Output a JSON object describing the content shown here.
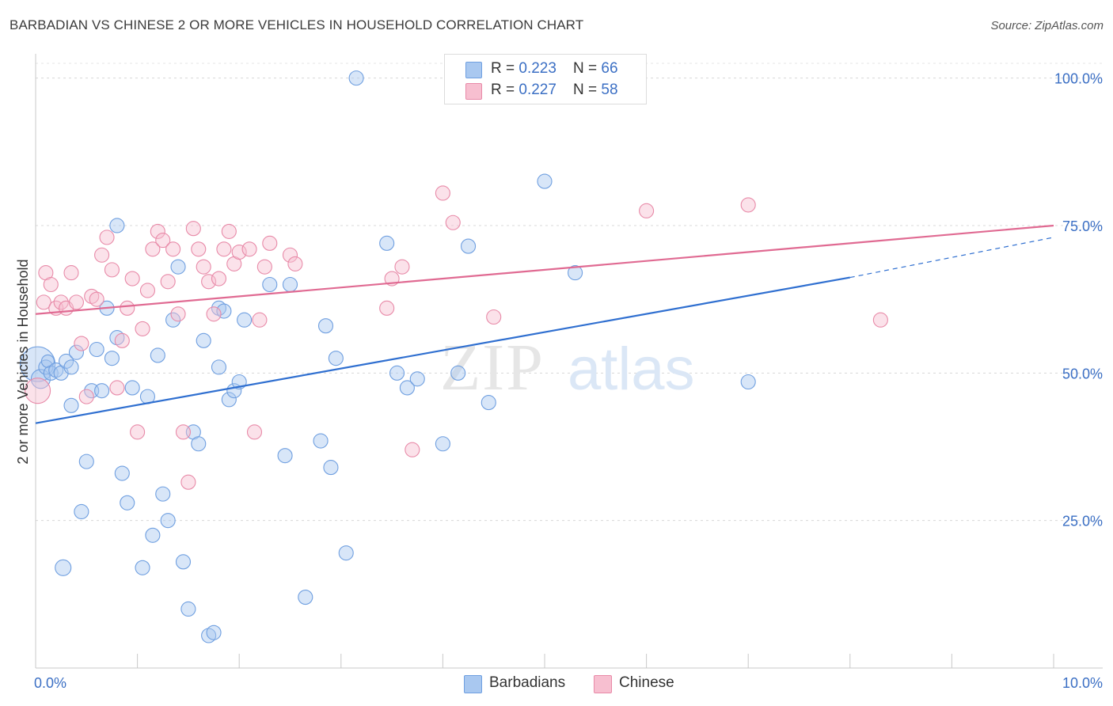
{
  "title": "BARBADIAN VS CHINESE 2 OR MORE VEHICLES IN HOUSEHOLD CORRELATION CHART",
  "source": "Source: ZipAtlas.com",
  "watermark": {
    "part1": "ZIP",
    "part2": "atlas"
  },
  "legend": {
    "rows": [
      {
        "r_label": "R = ",
        "r_value": "0.223",
        "n_label": "N = ",
        "n_value": "66",
        "color": "#a9c8f0",
        "border": "#6f9fe0"
      },
      {
        "r_label": "R = ",
        "r_value": "0.227",
        "n_label": "N = ",
        "n_value": "58",
        "color": "#f7bfd0",
        "border": "#e88aa8"
      }
    ]
  },
  "bottom_legend": [
    {
      "label": "Barbadians",
      "color": "#a9c8f0",
      "border": "#6f9fe0"
    },
    {
      "label": "Chinese",
      "color": "#f7bfd0",
      "border": "#e88aa8"
    }
  ],
  "chart_data": {
    "type": "scatter",
    "xlabel": "",
    "ylabel": "2 or more Vehicles in Household",
    "xlim": [
      0,
      10
    ],
    "ylim": [
      0,
      102.5
    ],
    "x_tick_labels": [
      "0.0%",
      "10.0%"
    ],
    "y_ticks": [
      25,
      50,
      75,
      100
    ],
    "y_tick_labels": [
      "25.0%",
      "50.0%",
      "75.0%",
      "100.0%"
    ],
    "grid": true,
    "series": [
      {
        "name": "Barbadians",
        "color": "#6f9fe0",
        "fill": "#a9c8f0",
        "line_color": "#2f6fd0",
        "trend": {
          "x0": 0,
          "y0": 41.5,
          "x1": 8.0,
          "y1": 66.2,
          "dash_to_x": 10,
          "dash_to_y": 73.0
        },
        "points": [
          [
            0.02,
            51.5,
            22
          ],
          [
            0.05,
            49.0,
            12
          ],
          [
            0.1,
            51.0,
            9
          ],
          [
            0.12,
            52.0,
            8
          ],
          [
            0.15,
            50.0,
            9
          ],
          [
            0.2,
            50.5,
            9
          ],
          [
            0.25,
            50.0,
            9
          ],
          [
            0.3,
            52.0,
            9
          ],
          [
            0.35,
            44.5,
            9
          ],
          [
            0.4,
            53.5,
            9
          ],
          [
            0.45,
            26.5,
            9
          ],
          [
            0.5,
            35.0,
            9
          ],
          [
            0.55,
            47.0,
            9
          ],
          [
            0.6,
            54.0,
            9
          ],
          [
            0.65,
            47.0,
            9
          ],
          [
            0.7,
            61.0,
            9
          ],
          [
            0.75,
            52.5,
            9
          ],
          [
            0.8,
            56.0,
            9
          ],
          [
            0.85,
            33.0,
            9
          ],
          [
            0.9,
            28.0,
            9
          ],
          [
            0.95,
            47.5,
            9
          ],
          [
            0.8,
            75.0,
            9
          ],
          [
            0.27,
            17.0,
            10
          ],
          [
            0.35,
            51.0,
            9
          ],
          [
            1.05,
            17.0,
            9
          ],
          [
            1.1,
            46.0,
            9
          ],
          [
            1.15,
            22.5,
            9
          ],
          [
            1.2,
            53.0,
            9
          ],
          [
            1.25,
            29.5,
            9
          ],
          [
            1.3,
            25.0,
            9
          ],
          [
            1.35,
            59.0,
            9
          ],
          [
            1.4,
            68.0,
            9
          ],
          [
            1.45,
            18.0,
            9
          ],
          [
            1.5,
            10.0,
            9
          ],
          [
            1.55,
            40.0,
            9
          ],
          [
            1.6,
            38.0,
            9
          ],
          [
            1.65,
            55.5,
            9
          ],
          [
            1.7,
            5.5,
            9
          ],
          [
            1.75,
            6.0,
            9
          ],
          [
            1.8,
            61.0,
            9
          ],
          [
            1.85,
            60.5,
            9
          ],
          [
            1.9,
            45.5,
            9
          ],
          [
            1.95,
            47.0,
            9
          ],
          [
            2.0,
            48.5,
            9
          ],
          [
            2.05,
            59.0,
            9
          ],
          [
            1.8,
            51.0,
            9
          ],
          [
            2.3,
            65.0,
            9
          ],
          [
            2.5,
            65.0,
            9
          ],
          [
            2.45,
            36.0,
            9
          ],
          [
            2.65,
            12.0,
            9
          ],
          [
            2.8,
            38.5,
            9
          ],
          [
            2.85,
            58.0,
            9
          ],
          [
            2.9,
            34.0,
            9
          ],
          [
            2.95,
            52.5,
            9
          ],
          [
            3.05,
            19.5,
            9
          ],
          [
            3.15,
            100.0,
            9
          ],
          [
            3.45,
            72.0,
            9
          ],
          [
            3.55,
            50.0,
            9
          ],
          [
            3.65,
            47.5,
            9
          ],
          [
            3.75,
            49.0,
            9
          ],
          [
            4.0,
            38.0,
            9
          ],
          [
            4.15,
            50.0,
            9
          ],
          [
            4.25,
            71.5,
            9
          ],
          [
            4.45,
            45.0,
            9
          ],
          [
            5.0,
            82.5,
            9
          ],
          [
            5.3,
            67.0,
            9
          ],
          [
            7.0,
            48.5,
            9
          ]
        ]
      },
      {
        "name": "Chinese",
        "color": "#e88aa8",
        "fill": "#f7bfd0",
        "line_color": "#e06a92",
        "trend": {
          "x0": 0,
          "y0": 60.0,
          "x1": 10,
          "y1": 75.0
        },
        "points": [
          [
            0.02,
            47.0,
            16
          ],
          [
            0.08,
            62.0,
            9
          ],
          [
            0.1,
            67.0,
            9
          ],
          [
            0.15,
            65.0,
            9
          ],
          [
            0.2,
            61.0,
            9
          ],
          [
            0.25,
            62.0,
            9
          ],
          [
            0.3,
            61.0,
            9
          ],
          [
            0.35,
            67.0,
            9
          ],
          [
            0.4,
            62.0,
            9
          ],
          [
            0.45,
            55.0,
            9
          ],
          [
            0.5,
            46.0,
            9
          ],
          [
            0.55,
            63.0,
            9
          ],
          [
            0.6,
            62.5,
            9
          ],
          [
            0.65,
            70.0,
            9
          ],
          [
            0.7,
            73.0,
            9
          ],
          [
            0.75,
            67.5,
            9
          ],
          [
            0.8,
            47.5,
            9
          ],
          [
            0.85,
            55.5,
            9
          ],
          [
            0.9,
            61.0,
            9
          ],
          [
            0.95,
            66.0,
            9
          ],
          [
            1.0,
            40.0,
            9
          ],
          [
            1.05,
            57.5,
            9
          ],
          [
            1.1,
            64.0,
            9
          ],
          [
            1.15,
            71.0,
            9
          ],
          [
            1.2,
            74.0,
            9
          ],
          [
            1.25,
            72.5,
            9
          ],
          [
            1.3,
            65.5,
            9
          ],
          [
            1.35,
            71.0,
            9
          ],
          [
            1.4,
            60.0,
            9
          ],
          [
            1.45,
            40.0,
            9
          ],
          [
            1.5,
            31.5,
            9
          ],
          [
            1.55,
            74.5,
            9
          ],
          [
            1.6,
            71.0,
            9
          ],
          [
            1.65,
            68.0,
            9
          ],
          [
            1.7,
            65.5,
            9
          ],
          [
            1.75,
            60.0,
            9
          ],
          [
            1.8,
            66.0,
            9
          ],
          [
            1.85,
            71.0,
            9
          ],
          [
            1.9,
            74.0,
            9
          ],
          [
            1.95,
            68.5,
            9
          ],
          [
            2.0,
            70.5,
            9
          ],
          [
            2.1,
            71.0,
            9
          ],
          [
            2.15,
            40.0,
            9
          ],
          [
            2.2,
            59.0,
            9
          ],
          [
            2.25,
            68.0,
            9
          ],
          [
            2.3,
            72.0,
            9
          ],
          [
            2.5,
            70.0,
            9
          ],
          [
            2.55,
            68.5,
            9
          ],
          [
            3.45,
            61.0,
            9
          ],
          [
            3.5,
            66.0,
            9
          ],
          [
            3.6,
            68.0,
            9
          ],
          [
            3.7,
            37.0,
            9
          ],
          [
            4.0,
            80.5,
            9
          ],
          [
            4.1,
            75.5,
            9
          ],
          [
            4.5,
            59.5,
            9
          ],
          [
            6.0,
            77.5,
            9
          ],
          [
            7.0,
            78.5,
            9
          ],
          [
            8.3,
            59.0,
            9
          ]
        ]
      }
    ]
  }
}
